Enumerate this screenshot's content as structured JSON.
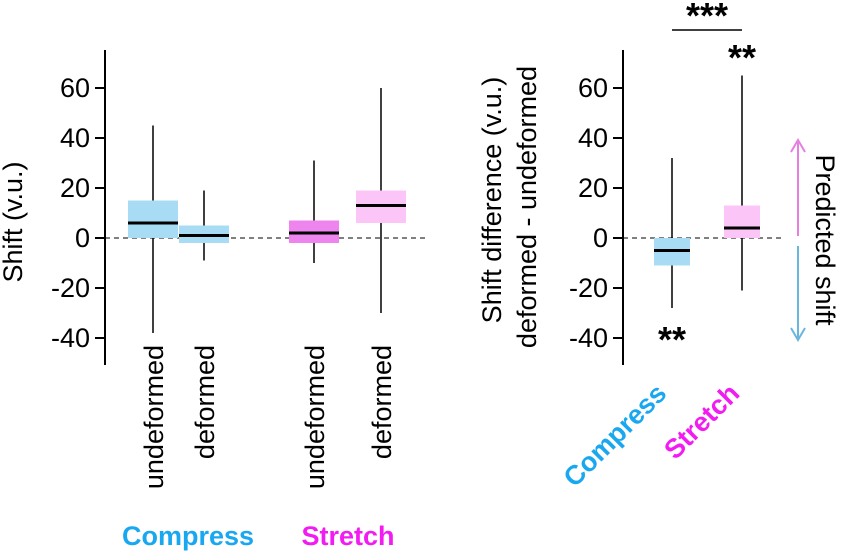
{
  "chart_data": [
    {
      "type": "box",
      "ylabel": "Shift (v.u.)",
      "ylim": [
        -50,
        75
      ],
      "yticks": [
        60,
        40,
        20,
        0,
        -20,
        -40
      ],
      "zero_line": "dashed",
      "boxes": [
        {
          "label": "undeformed",
          "group": "Compress",
          "color": "#a8dcf5",
          "median": 6,
          "q1": 0,
          "q3": 15,
          "whisker_low": -38,
          "whisker_high": 45
        },
        {
          "label": "deformed",
          "group": "Compress",
          "color": "#a8dcf5",
          "median": 1,
          "q1": -2,
          "q3": 5,
          "whisker_low": -9,
          "whisker_high": 19
        },
        {
          "label": "undeformed",
          "group": "Stretch",
          "color": "#ee84ee",
          "median": 2,
          "q1": -2,
          "q3": 7,
          "whisker_low": -10,
          "whisker_high": 31
        },
        {
          "label": "deformed",
          "group": "Stretch",
          "color": "#fcc5f8",
          "median": 13,
          "q1": 6,
          "q3": 19,
          "whisker_low": -30,
          "whisker_high": 60
        }
      ],
      "groups": [
        {
          "name": "Compress",
          "color": "#19a8f0"
        },
        {
          "name": "Stretch",
          "color": "#f21cf2"
        }
      ]
    },
    {
      "type": "box",
      "ylabel_line1": "Shift difference (v.u.)",
      "ylabel_line2": "deformed - undeformed",
      "ylim": [
        -50,
        75
      ],
      "yticks": [
        60,
        40,
        20,
        0,
        -20,
        -40
      ],
      "zero_line": "dashed",
      "boxes": [
        {
          "label": "Compress",
          "color": "#a8dcf5",
          "label_color": "#19a8f0",
          "median": -5,
          "q1": -11,
          "q3": 0,
          "whisker_low": -28,
          "whisker_high": 32,
          "annotation": "**"
        },
        {
          "label": "Stretch",
          "color": "#fcc5f8",
          "label_color": "#f21cf2",
          "median": 4,
          "q1": 0,
          "q3": 13,
          "whisker_low": -21,
          "whisker_high": 65,
          "annotation": "**"
        }
      ],
      "comparison": "***",
      "predicted_shift": {
        "label": "Predicted shift",
        "up_color": "#e57fe0",
        "down_color": "#6ab6dc"
      }
    }
  ]
}
